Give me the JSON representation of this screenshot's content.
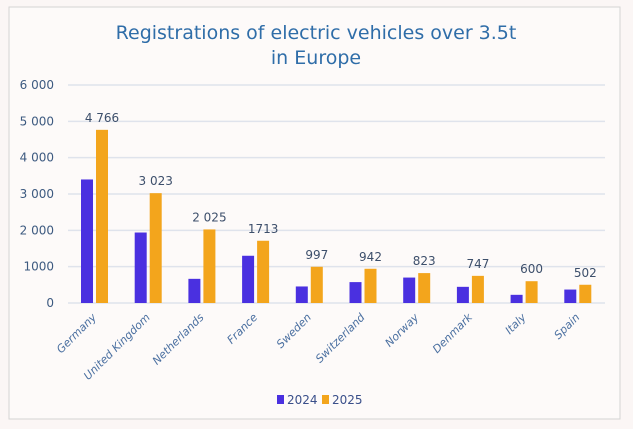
{
  "chart_data": {
    "type": "bar",
    "title_lines": [
      "Registrations of electric vehicles over 3.5t",
      "in Europe"
    ],
    "xlabel": "",
    "ylabel": "",
    "ylim": [
      0,
      6000
    ],
    "yticks": [
      0,
      1000,
      2000,
      3000,
      4000,
      5000,
      6000
    ],
    "ytick_labels": [
      "0",
      "1000",
      "2 000",
      "3 000",
      "4 000",
      "5 000",
      "6 000"
    ],
    "grid": true,
    "legend_position": "bottom",
    "categories": [
      "Germany",
      "United Kingdom",
      "Netherlands",
      "France",
      "Sweden",
      "Switzerland",
      "Norway",
      "Denmark",
      "Italy",
      "Spain"
    ],
    "series": [
      {
        "name": "2024",
        "color": "#4a30e0",
        "values": [
          3400,
          1940,
          665,
          1300,
          455,
          575,
          700,
          445,
          225,
          370
        ],
        "labels": []
      },
      {
        "name": "2025",
        "color": "#f3a51c",
        "values": [
          4766,
          3023,
          2025,
          1713,
          997,
          942,
          823,
          747,
          600,
          502
        ],
        "labels": [
          "4 766",
          "3 023",
          "2 025",
          "1713",
          "997",
          "942",
          "823",
          "747",
          "600",
          "502"
        ]
      }
    ]
  },
  "colors": {
    "background": "#fbf6f5",
    "card": "#fdfaf9",
    "gridline": "#dfe3ec",
    "title": "#2f6da8"
  }
}
